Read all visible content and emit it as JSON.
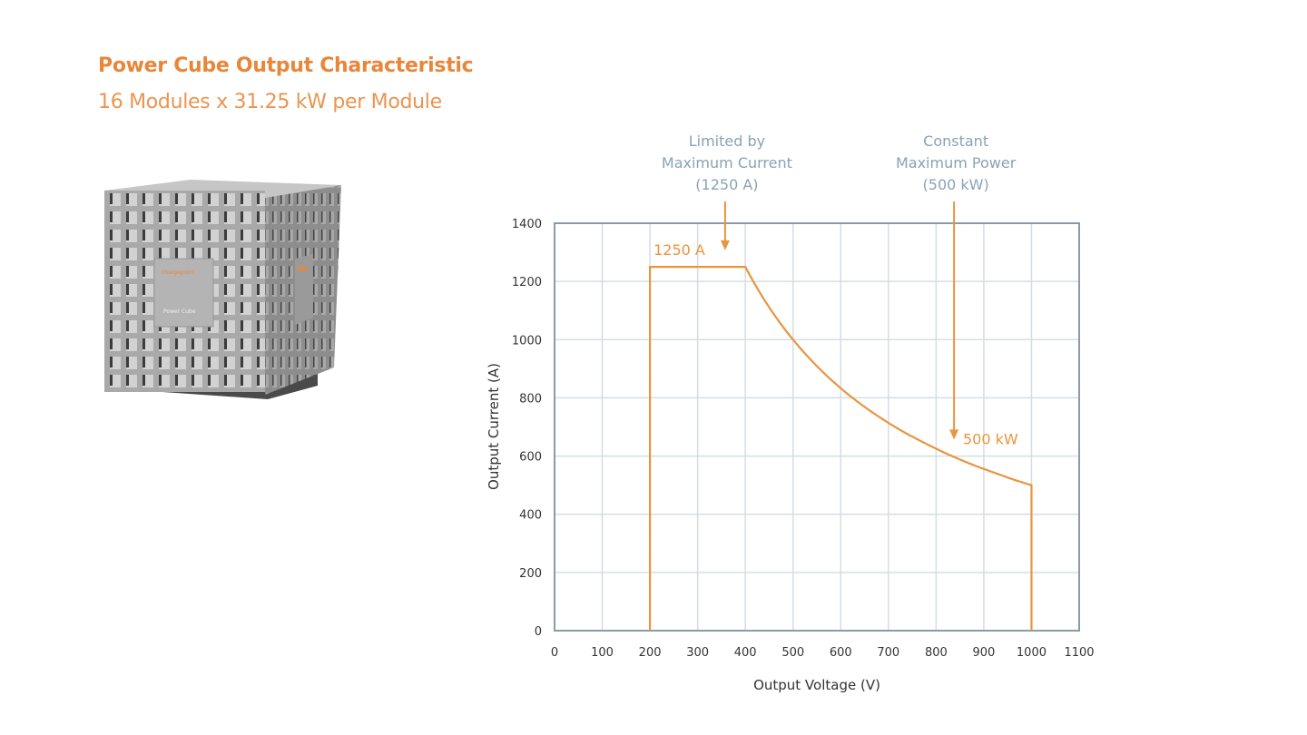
{
  "header": {
    "title": "Power Cube Output Characteristic",
    "subtitle": "16 Modules x 31.25 kW per Module"
  },
  "product_image": {
    "logo_text": "chargepoint",
    "label": "Power Cube"
  },
  "chart_data": {
    "type": "line",
    "xlabel": "Output Voltage (V)",
    "ylabel": "Output Current (A)",
    "xlim": [
      0,
      1100
    ],
    "ylim": [
      0,
      1400
    ],
    "xticks": [
      "0",
      "100",
      "200",
      "300",
      "400",
      "500",
      "600",
      "700",
      "800",
      "900",
      "1000",
      "1100"
    ],
    "yticks": [
      "0",
      "200",
      "400",
      "600",
      "800",
      "1000",
      "1200",
      "1400"
    ],
    "grid": true,
    "series": [
      {
        "color": "#e8953f",
        "x": [
          200,
          200,
          400,
          450,
          500,
          550,
          600,
          650,
          700,
          750,
          800,
          850,
          900,
          950,
          1000,
          1000
        ],
        "y": [
          0,
          1250,
          1250,
          1111,
          1000,
          909,
          833,
          769,
          714,
          667,
          625,
          588,
          556,
          526,
          500,
          0
        ]
      }
    ],
    "annotations": [
      {
        "lines": [
          "Limited by",
          "Maximum Current",
          "(1250 A)"
        ],
        "x": 350,
        "arrow_to_y": 1310
      },
      {
        "lines": [
          "Constant",
          "Maximum Power",
          "(500 kW)"
        ],
        "x": 830,
        "arrow_to_y": 660
      }
    ],
    "point_labels": [
      {
        "text": "1250 A",
        "x": 200,
        "y": 1310
      },
      {
        "text": "500 kW",
        "x": 845,
        "y": 660
      }
    ],
    "colors": {
      "curve": "#e8953f",
      "annotation": "#8aa2b4",
      "grid": "#d5dde3",
      "frame": "#8a9ba8"
    }
  }
}
